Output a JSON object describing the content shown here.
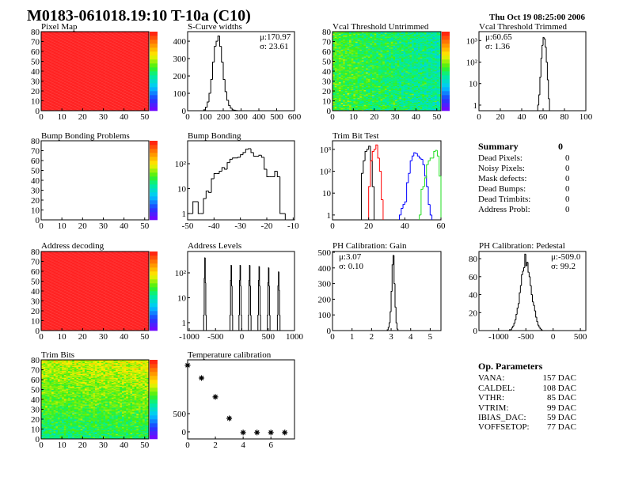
{
  "header": {
    "title": "M0183-061018.19:10 T-10a (C10)",
    "date": "Thu Oct 19 08:25:00 2006"
  },
  "summary": {
    "label": "Summary",
    "total": "0",
    "rows": [
      {
        "label": "Dead Pixels:",
        "value": "0"
      },
      {
        "label": "Noisy Pixels:",
        "value": "0"
      },
      {
        "label": "Mask defects:",
        "value": "0"
      },
      {
        "label": "Dead Bumps:",
        "value": "0"
      },
      {
        "label": "Dead Trimbits:",
        "value": "0"
      },
      {
        "label": "Address Probl:",
        "value": "0"
      }
    ]
  },
  "op_parameters": {
    "label": "Op. Parameters",
    "rows": [
      {
        "label": "VANA:",
        "value": "157 DAC"
      },
      {
        "label": "CALDEL:",
        "value": "108 DAC"
      },
      {
        "label": "VTHR:",
        "value": "85 DAC"
      },
      {
        "label": "VTRIM:",
        "value": "99 DAC"
      },
      {
        "label": "IBIAS_DAC:",
        "value": "59 DAC"
      },
      {
        "label": "VOFFSETOP:",
        "value": "77 DAC"
      }
    ]
  },
  "chart_data": [
    {
      "id": "pixel-map",
      "type": "heatmap",
      "title": "Pixel Map",
      "xlim": [
        0,
        52
      ],
      "ylim": [
        0,
        80
      ],
      "x_ticks": [
        0,
        10,
        20,
        30,
        40,
        50
      ],
      "y_ticks": [
        0,
        10,
        20,
        30,
        40,
        50,
        60,
        70,
        80
      ],
      "zlim": [
        0,
        10
      ],
      "fill": "uniform",
      "value": 10
    },
    {
      "id": "s-curve",
      "type": "histogram",
      "title": "S-Curve widths",
      "xlim": [
        0,
        600
      ],
      "ylim": [
        0,
        455
      ],
      "log_y": false,
      "x_ticks": [
        0,
        100,
        200,
        300,
        400,
        500,
        600
      ],
      "y_ticks": [
        0,
        100,
        200,
        300,
        400
      ],
      "stats": [
        "μ:170.97",
        "σ: 23.61"
      ],
      "stats_align": "right",
      "series": [
        {
          "color": "#000000",
          "x_start": 90,
          "bin_width": 10,
          "values": [
            5,
            20,
            50,
            100,
            180,
            280,
            370,
            400,
            430,
            370,
            280,
            180,
            110,
            60,
            30,
            15,
            5,
            3,
            1
          ]
        }
      ]
    },
    {
      "id": "vcal-untrimmed",
      "type": "heatmap",
      "title": "Vcal Threshold Untrimmed",
      "xlim": [
        0,
        52
      ],
      "ylim": [
        0,
        80
      ],
      "x_ticks": [
        0,
        10,
        20,
        30,
        40,
        50
      ],
      "y_ticks": [
        0,
        10,
        20,
        30,
        40,
        50,
        60,
        70,
        80
      ],
      "zlim": [
        75,
        117
      ],
      "fill": "noise",
      "mean_left": 98,
      "mean_right": 93,
      "mean_top": 0,
      "spread": 4
    },
    {
      "id": "vcal-trimmed",
      "type": "histogram",
      "title": "Vcal Threshold Trimmed",
      "xlim": [
        0,
        100
      ],
      "ylim": [
        0.55,
        2600
      ],
      "log_y": true,
      "x_ticks": [
        0,
        20,
        40,
        60,
        80,
        100
      ],
      "y_ticks": [
        1,
        10,
        100,
        1000
      ],
      "y_tick_labels": [
        "1",
        "10",
        "10²",
        "10³"
      ],
      "stats": [
        "μ:60.65",
        "σ: 1.36"
      ],
      "stats_align": "left",
      "series": [
        {
          "color": "#000000",
          "x_start": 55,
          "bin_width": 1,
          "values": [
            1,
            3,
            20,
            150,
            600,
            1400,
            1200,
            500,
            100,
            15,
            2
          ]
        }
      ]
    },
    {
      "id": "bump-problems",
      "type": "heatmap",
      "title": "Bump Bonding Problems",
      "xlim": [
        0,
        52
      ],
      "ylim": [
        0,
        80
      ],
      "x_ticks": [
        0,
        10,
        20,
        30,
        40,
        50
      ],
      "y_ticks": [
        0,
        10,
        20,
        30,
        40,
        50,
        60,
        70,
        80
      ],
      "zlim": [
        0,
        2
      ],
      "fill": "empty"
    },
    {
      "id": "bump-bonding",
      "type": "histogram",
      "title": "Bump Bonding",
      "xlim": [
        -50,
        -9.5
      ],
      "ylim": [
        0.56,
        830
      ],
      "log_y": true,
      "x_ticks": [
        -50,
        -40,
        -30,
        -20,
        -10
      ],
      "y_ticks": [
        1,
        10,
        100
      ],
      "y_tick_labels": [
        "1",
        "10",
        "10²"
      ],
      "series": [
        {
          "color": "#000000",
          "x_start": -50,
          "bin_width": 1,
          "values": [
            1,
            1,
            3,
            3,
            1,
            1,
            4,
            8,
            7,
            25,
            40,
            40,
            50,
            70,
            60,
            110,
            150,
            170,
            170,
            180,
            230,
            280,
            380,
            400,
            280,
            200,
            200,
            220,
            180,
            60,
            30,
            30,
            30,
            50,
            30,
            1,
            1,
            0
          ]
        }
      ]
    },
    {
      "id": "trim-bit-test",
      "type": "histogram",
      "title": "Trim Bit Test",
      "xlim": [
        0,
        60
      ],
      "ylim": [
        0.6,
        2470
      ],
      "log_y": true,
      "x_ticks": [
        0,
        20,
        40,
        60
      ],
      "y_ticks": [
        1,
        10,
        100,
        1000
      ],
      "y_tick_labels": [
        "1",
        "10",
        "10²",
        "10³"
      ],
      "series": [
        {
          "color": "#000000",
          "x_start": 16,
          "bin_width": 1,
          "values": [
            80,
            300,
            800,
            1000,
            1400,
            300,
            20
          ]
        },
        {
          "color": "#ff0000",
          "x_start": 20,
          "bin_width": 1,
          "values": [
            20,
            300,
            800,
            1000,
            1600,
            400,
            100,
            5
          ]
        },
        {
          "color": "#0000ff",
          "x_start": 37,
          "bin_width": 1,
          "values": [
            1,
            2,
            3,
            4,
            30,
            80,
            300,
            500,
            700,
            650,
            500,
            400,
            350,
            200,
            60,
            20,
            3,
            1
          ]
        },
        {
          "color": "#22dd22",
          "x_start": 48,
          "bin_width": 1,
          "values": [
            1,
            15,
            20,
            50,
            200,
            300,
            400,
            400,
            800,
            900,
            500,
            60
          ]
        }
      ]
    },
    {
      "id": "address-decoding",
      "type": "heatmap",
      "title": "Address decoding",
      "xlim": [
        0,
        52
      ],
      "ylim": [
        0,
        80
      ],
      "x_ticks": [
        0,
        10,
        20,
        30,
        40,
        50
      ],
      "y_ticks": [
        0,
        10,
        20,
        30,
        40,
        50,
        60,
        70,
        80
      ],
      "zlim": [
        0,
        1
      ],
      "fill": "uniform",
      "value": 1
    },
    {
      "id": "address-levels",
      "type": "histogram",
      "title": "Address Levels",
      "xlim": [
        -1030,
        1000
      ],
      "ylim": [
        0.48,
        720
      ],
      "log_y": true,
      "x_ticks": [
        -1000,
        -500,
        0,
        500,
        1000
      ],
      "y_ticks": [
        1,
        10,
        100
      ],
      "y_tick_labels": [
        "1",
        "10",
        "10²"
      ],
      "series": [
        {
          "color": "#000000",
          "x_start": -725,
          "bin_width": 10,
          "values": [
            2,
            60,
            400,
            40,
            2
          ]
        },
        {
          "color": "#000000",
          "x_start": -225,
          "bin_width": 10,
          "values": [
            2,
            50,
            200,
            30,
            2
          ]
        },
        {
          "color": "#000000",
          "x_start": -55,
          "bin_width": 10,
          "values": [
            2,
            50,
            200,
            30,
            2
          ]
        },
        {
          "color": "#000000",
          "x_start": 125,
          "bin_width": 10,
          "values": [
            2,
            50,
            200,
            30,
            2
          ]
        },
        {
          "color": "#000000",
          "x_start": 305,
          "bin_width": 10,
          "values": [
            2,
            50,
            180,
            30,
            2
          ]
        },
        {
          "color": "#000000",
          "x_start": 485,
          "bin_width": 10,
          "values": [
            2,
            40,
            160,
            30,
            2
          ]
        },
        {
          "color": "#000000",
          "x_start": 675,
          "bin_width": 10,
          "values": [
            2,
            30,
            110,
            20,
            2
          ]
        }
      ]
    },
    {
      "id": "ph-gain",
      "type": "histogram",
      "title": "PH Calibration: Gain",
      "xlim": [
        0,
        5.55
      ],
      "ylim": [
        0,
        505
      ],
      "log_y": false,
      "x_ticks": [
        0,
        1,
        2,
        3,
        4,
        5
      ],
      "y_ticks": [
        0,
        100,
        200,
        300,
        400,
        500
      ],
      "stats": [
        "μ:3.07",
        "σ: 0.10"
      ],
      "stats_align": "left",
      "series": [
        {
          "color": "#000000",
          "x_start": 2.8,
          "bin_width": 0.05,
          "values": [
            5,
            20,
            50,
            120,
            250,
            420,
            480,
            300,
            150,
            50,
            10
          ]
        }
      ]
    },
    {
      "id": "ph-pedestal",
      "type": "histogram",
      "title": "PH Calibration: Pedestal",
      "xlim": [
        -1360,
        600
      ],
      "ylim": [
        0,
        88
      ],
      "log_y": false,
      "x_ticks": [
        -1000,
        -500,
        0,
        500
      ],
      "y_ticks": [
        0,
        20,
        40,
        60,
        80
      ],
      "stats": [
        "μ:-509.0",
        "σ: 99.2"
      ],
      "stats_align": "right",
      "series": [
        {
          "color": "#000000",
          "x_start": -800,
          "bin_width": 20,
          "values": [
            1,
            1,
            3,
            5,
            8,
            12,
            18,
            25,
            30,
            42,
            50,
            62,
            66,
            70,
            85,
            72,
            76,
            65,
            60,
            50,
            40,
            32,
            28,
            22,
            15,
            10,
            6,
            4,
            2,
            1
          ]
        }
      ]
    },
    {
      "id": "trim-bits",
      "type": "heatmap",
      "title": "Trim Bits",
      "xlim": [
        0,
        52
      ],
      "ylim": [
        0,
        80
      ],
      "x_ticks": [
        0,
        10,
        20,
        30,
        40,
        50
      ],
      "y_ticks": [
        0,
        10,
        20,
        30,
        40,
        50,
        60,
        70,
        80
      ],
      "zlim": [
        0,
        16
      ],
      "fill": "noise",
      "mean_left": 9,
      "mean_right": 9.5,
      "mean_top": 1.5,
      "spread": 1.4
    },
    {
      "id": "temperature",
      "type": "scatter",
      "title": "Temperature calibration",
      "xlim": [
        0,
        7.7
      ],
      "ylim": [
        -196,
        1980
      ],
      "x_ticks": [
        0,
        2,
        4,
        6
      ],
      "y_ticks": [
        0,
        500
      ],
      "marker": "star",
      "x": [
        0,
        1,
        2,
        3,
        4,
        5,
        6,
        7
      ],
      "y": [
        1830,
        1480,
        960,
        370,
        -20,
        -20,
        -20,
        -20
      ]
    }
  ]
}
